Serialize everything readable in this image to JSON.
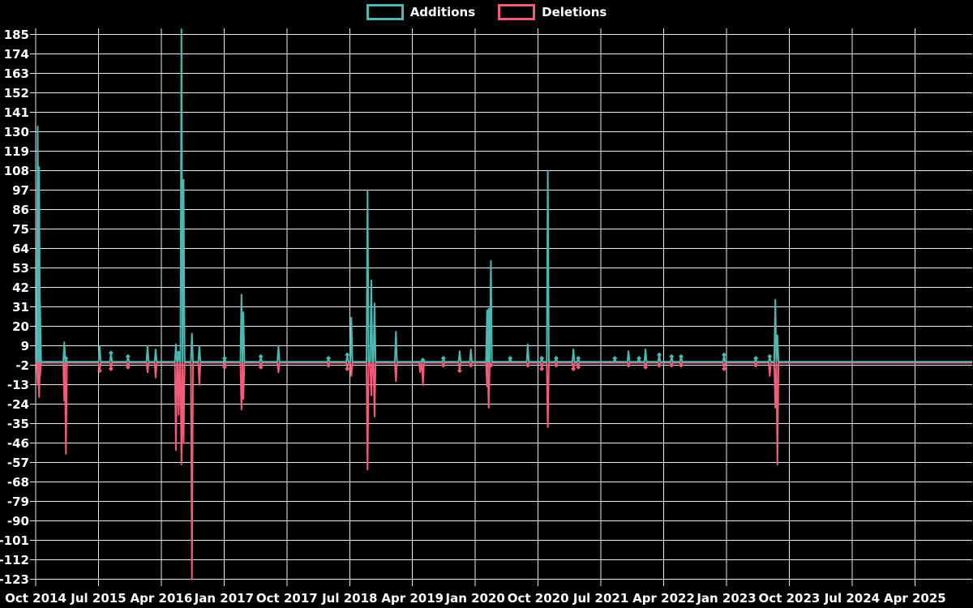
{
  "legend": {
    "additions_label": "Additions",
    "deletions_label": "Deletions"
  },
  "colors": {
    "background": "#000000",
    "grid": "#ffffff",
    "text": "#ffffff",
    "additions": "#4db8b2",
    "deletions": "#f25c78"
  },
  "chart_data": {
    "type": "line",
    "title": "",
    "xlabel": "",
    "ylabel": "",
    "grid": true,
    "legend_position": "top-center",
    "x_axis": {
      "tick_labels": [
        "Oct 2014",
        "Jul 2015",
        "Apr 2016",
        "Jan 2017",
        "Oct 2017",
        "Jul 2018",
        "Apr 2019",
        "Jan 2020",
        "Oct 2020",
        "Jul 2021",
        "Apr 2022",
        "Jan 2023",
        "Oct 2023",
        "Jul 2024",
        "Apr 2025"
      ],
      "start": "2014-10",
      "tick_interval_months": 9,
      "end_visible": "2025-12"
    },
    "y_axis": {
      "tick_values": [
        185,
        174,
        163,
        152,
        141,
        130,
        119,
        108,
        97,
        86,
        75,
        64,
        53,
        42,
        31,
        20,
        9,
        -2,
        -13,
        -24,
        -35,
        -46,
        -57,
        -68,
        -79,
        -90,
        -101,
        -112,
        -123
      ],
      "tick_step": 11,
      "ylim": [
        -123,
        188
      ]
    },
    "series": [
      {
        "name": "Additions",
        "color": "#4db8b2",
        "value_key": "additions"
      },
      {
        "name": "Deletions",
        "color": "#f25c78",
        "value_key": "deletions"
      }
    ],
    "baseline_value": 0,
    "events": [
      {
        "date": "2014-10-10",
        "additions": 133,
        "deletions": -13
      },
      {
        "date": "2014-10-16",
        "additions": 110,
        "deletions": -20
      },
      {
        "date": "2014-10-20",
        "additions": 34,
        "deletions": -8
      },
      {
        "date": "2015-02-04",
        "additions": 11,
        "deletions": -22
      },
      {
        "date": "2015-02-11",
        "additions": 2,
        "deletions": -52
      },
      {
        "date": "2015-07-06",
        "additions": 9,
        "deletions": -5
      },
      {
        "date": "2015-08-25",
        "additions": 5,
        "deletions": -4
      },
      {
        "date": "2015-11-08",
        "additions": 3,
        "deletions": -3
      },
      {
        "date": "2016-02-02",
        "additions": 9,
        "deletions": -6
      },
      {
        "date": "2016-03-07",
        "additions": 7,
        "deletions": -9
      },
      {
        "date": "2016-06-04",
        "additions": 10,
        "deletions": -50
      },
      {
        "date": "2016-06-16",
        "additions": 5,
        "deletions": -30
      },
      {
        "date": "2016-06-28",
        "additions": 188,
        "deletions": -58
      },
      {
        "date": "2016-07-07",
        "additions": 103,
        "deletions": -46
      },
      {
        "date": "2016-08-13",
        "additions": 16,
        "deletions": -123
      },
      {
        "date": "2016-09-15",
        "additions": 9,
        "deletions": -13
      },
      {
        "date": "2017-01-03",
        "additions": 2,
        "deletions": -3
      },
      {
        "date": "2017-03-16",
        "additions": 38,
        "deletions": -27
      },
      {
        "date": "2017-03-24",
        "additions": 28,
        "deletions": -21
      },
      {
        "date": "2017-06-09",
        "additions": 3,
        "deletions": -3
      },
      {
        "date": "2017-08-25",
        "additions": 9,
        "deletions": -6
      },
      {
        "date": "2018-03-30",
        "additions": 2,
        "deletions": -2
      },
      {
        "date": "2018-06-21",
        "additions": 4,
        "deletions": -4
      },
      {
        "date": "2018-07-08",
        "additions": 25,
        "deletions": -8
      },
      {
        "date": "2018-09-18",
        "additions": 97,
        "deletions": -61
      },
      {
        "date": "2018-10-04",
        "additions": 46,
        "deletions": -19
      },
      {
        "date": "2018-10-18",
        "additions": 33,
        "deletions": -31
      },
      {
        "date": "2019-01-20",
        "additions": 17,
        "deletions": -11
      },
      {
        "date": "2019-05-04",
        "additions": 0,
        "deletions": -6
      },
      {
        "date": "2019-05-16",
        "additions": 1,
        "deletions": -13
      },
      {
        "date": "2019-08-14",
        "additions": 2,
        "deletions": -2
      },
      {
        "date": "2019-10-24",
        "additions": 6,
        "deletions": -5
      },
      {
        "date": "2019-12-12",
        "additions": 7,
        "deletions": -2
      },
      {
        "date": "2020-02-22",
        "additions": 29,
        "deletions": -14
      },
      {
        "date": "2020-02-29",
        "additions": 30,
        "deletions": -26
      },
      {
        "date": "2020-03-08",
        "additions": 57,
        "deletions": -2
      },
      {
        "date": "2020-06-01",
        "additions": 2,
        "deletions": 0
      },
      {
        "date": "2020-08-17",
        "additions": 10,
        "deletions": -2
      },
      {
        "date": "2020-10-17",
        "additions": 2,
        "deletions": -4
      },
      {
        "date": "2020-11-13",
        "additions": 108,
        "deletions": -37
      },
      {
        "date": "2020-12-19",
        "additions": 2,
        "deletions": -2
      },
      {
        "date": "2021-03-03",
        "additions": 7,
        "deletions": -4
      },
      {
        "date": "2021-03-24",
        "additions": 2,
        "deletions": -3
      },
      {
        "date": "2021-09-01",
        "additions": 2,
        "deletions": 0
      },
      {
        "date": "2021-10-30",
        "additions": 6,
        "deletions": -2
      },
      {
        "date": "2021-12-15",
        "additions": 2,
        "deletions": 0
      },
      {
        "date": "2022-01-13",
        "additions": 7,
        "deletions": -3
      },
      {
        "date": "2022-03-12",
        "additions": 4,
        "deletions": -2
      },
      {
        "date": "2022-05-05",
        "additions": 3,
        "deletions": -2
      },
      {
        "date": "2022-06-16",
        "additions": 3,
        "deletions": -2
      },
      {
        "date": "2022-12-21",
        "additions": 4,
        "deletions": -4
      },
      {
        "date": "2023-05-07",
        "additions": 2,
        "deletions": -2
      },
      {
        "date": "2023-07-07",
        "additions": 3,
        "deletions": -8
      },
      {
        "date": "2023-08-01",
        "additions": 35,
        "deletions": -26
      },
      {
        "date": "2023-08-10",
        "additions": 15,
        "deletions": -58
      }
    ]
  }
}
